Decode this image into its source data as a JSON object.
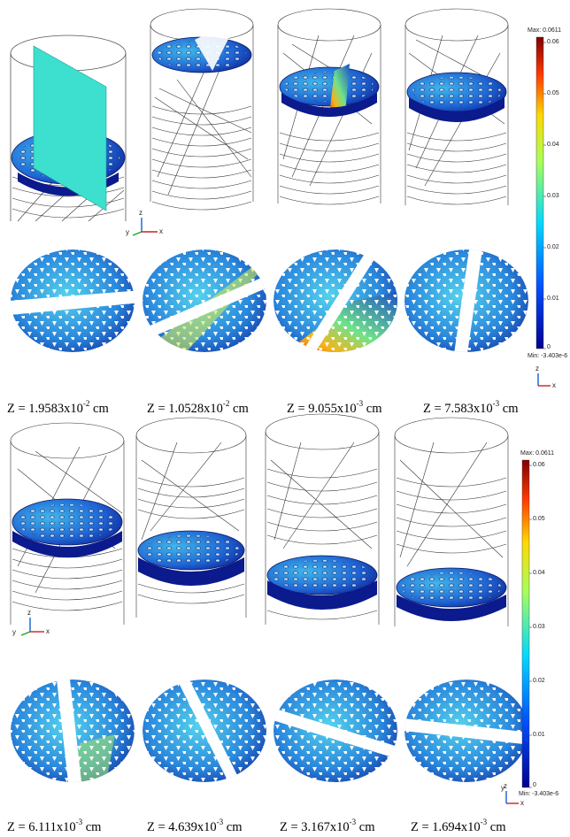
{
  "panels_top": {
    "captions": [
      {
        "prefix": "Z = 1.9583x10",
        "exp": "-2",
        "unit": " cm"
      },
      {
        "prefix": "Z = 1.0528x10",
        "exp": "-2",
        "unit": " cm"
      },
      {
        "prefix": "Z = 9.055x10",
        "exp": "-3",
        "unit": " cm"
      },
      {
        "prefix": "Z = 7.583x10",
        "exp": "-3",
        "unit": " cm"
      }
    ]
  },
  "panels_bottom": {
    "captions": [
      {
        "prefix": "Z = 6.111x10",
        "exp": "-3",
        "unit": " cm"
      },
      {
        "prefix": "Z = 4.639x10",
        "exp": "-3",
        "unit": " cm"
      },
      {
        "prefix": "Z = 3.167x10",
        "exp": "-3",
        "unit": " cm"
      },
      {
        "prefix": "Z = 1.694x10",
        "exp": "-3",
        "unit": " cm"
      }
    ]
  },
  "colorbar_top": {
    "max_label": "Max: 0.0611",
    "min_label": "Min: -3.403e-6",
    "ticks": [
      "0.06",
      "0.05",
      "0.04",
      "0.03",
      "0.02",
      "0.01",
      "0"
    ]
  },
  "colorbar_bottom": {
    "max_label": "Max: 0.0611",
    "min_label": "Min: -3.403e-6",
    "ticks": [
      "0.06",
      "0.05",
      "0.04",
      "0.03",
      "0.02",
      "0.01",
      "0"
    ]
  },
  "axes": {
    "x": "x",
    "y": "y",
    "z": "z"
  },
  "colors": {
    "wire": "#333333",
    "plate_dark": "#0b1a8c",
    "plate_mid": "#1f5fd0",
    "plate_light": "#49c6e8",
    "hot": "#e23a12",
    "cut_plane": "#3de0cf"
  }
}
